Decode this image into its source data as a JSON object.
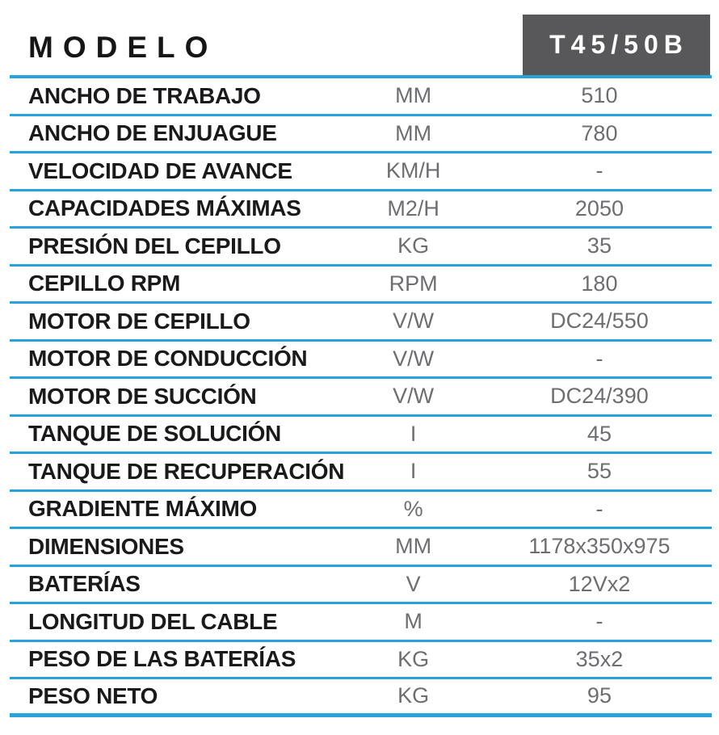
{
  "header": {
    "title": "MODELO",
    "model_badge": "T45/50B"
  },
  "colors": {
    "accent_blue": "#27A2DB",
    "badge_background": "#58585B",
    "label_text": "#1A1A1A",
    "value_text": "#6D6E71"
  },
  "table": {
    "columns": [
      "parameter",
      "unit",
      "value"
    ],
    "rows": [
      {
        "label": "ANCHO DE TRABAJO",
        "unit": "MM",
        "value": "510"
      },
      {
        "label": "ANCHO DE ENJUAGUE",
        "unit": "MM",
        "value": "780"
      },
      {
        "label": "VELOCIDAD DE AVANCE",
        "unit": "KM/H",
        "value": "-"
      },
      {
        "label": "CAPACIDADES MÁXIMAS",
        "unit": "M2/H",
        "value": "2050"
      },
      {
        "label": "PRESIÓN DEL CEPILLO",
        "unit": "KG",
        "value": "35"
      },
      {
        "label": "CEPILLO RPM",
        "unit": "RPM",
        "value": "180"
      },
      {
        "label": "MOTOR DE CEPILLO",
        "unit": "V/W",
        "value": "DC24/550"
      },
      {
        "label": "MOTOR DE CONDUCCIÓN",
        "unit": "V/W",
        "value": "-"
      },
      {
        "label": "MOTOR DE SUCCIÓN",
        "unit": "V/W",
        "value": "DC24/390"
      },
      {
        "label": "TANQUE DE SOLUCIÓN",
        "unit": "I",
        "value": "45"
      },
      {
        "label": "TANQUE DE RECUPERACIÓN",
        "unit": "I",
        "value": "55"
      },
      {
        "label": "GRADIENTE MÁXIMO",
        "unit": "%",
        "value": "-"
      },
      {
        "label": "DIMENSIONES",
        "unit": "MM",
        "value": "1178x350x975"
      },
      {
        "label": "BATERÍAS",
        "unit": "V",
        "value": "12Vx2"
      },
      {
        "label": "LONGITUD DEL CABLE",
        "unit": "M",
        "value": "-"
      },
      {
        "label": "PESO DE LAS BATERÍAS",
        "unit": "KG",
        "value": "35x2"
      },
      {
        "label": "PESO NETO",
        "unit": "KG",
        "value": "95"
      }
    ]
  }
}
